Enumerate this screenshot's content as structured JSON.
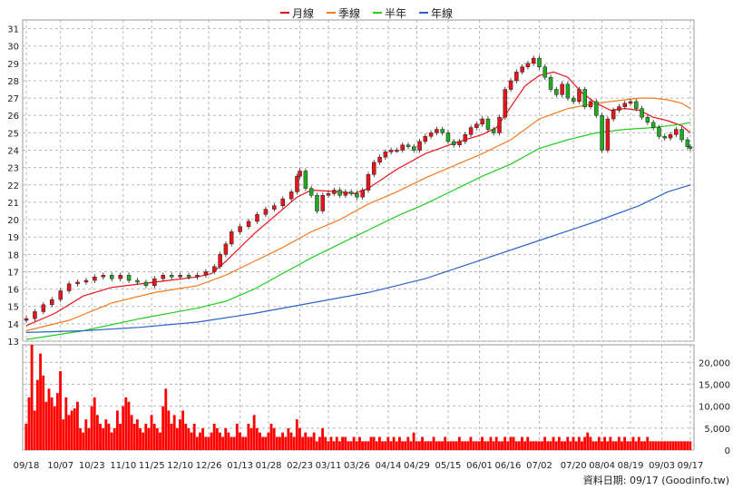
{
  "legend": [
    {
      "label": "月線",
      "color": "#e8141b"
    },
    {
      "label": "季線",
      "color": "#f47a20"
    },
    {
      "label": "半年",
      "color": "#22cc22"
    },
    {
      "label": "年線",
      "color": "#2a64c8"
    }
  ],
  "source_text": "資料日期: 09/17  (Goodinfo.tw)",
  "chart_data": [
    {
      "type": "candlestick",
      "name": "price",
      "y_ticks": [
        13,
        14,
        15,
        16,
        17,
        18,
        19,
        20,
        21,
        22,
        23,
        24,
        25,
        26,
        27,
        28,
        29,
        30,
        31
      ],
      "ylim": [
        13,
        31.5
      ],
      "x_tick_labels": [
        "09/18",
        "10/07",
        "10/23",
        "11/10",
        "11/25",
        "12/10",
        "12/26",
        "01/13",
        "01/28",
        "02/23",
        "03/11",
        "03/26",
        "04/14",
        "04/29",
        "05/15",
        "06/01",
        "06/16",
        "07/02",
        "07/20",
        "08/04",
        "08/19",
        "09/03",
        "09/17"
      ],
      "x_tick_index": [
        0,
        12,
        23,
        34,
        44,
        54,
        64,
        75,
        85,
        96,
        106,
        116,
        127,
        137,
        148,
        159,
        169,
        180,
        192,
        202,
        212,
        223,
        233
      ],
      "grid": true,
      "close_points": [
        [
          0,
          14.3
        ],
        [
          3,
          14.7
        ],
        [
          6,
          15.1
        ],
        [
          9,
          15.4
        ],
        [
          12,
          15.9
        ],
        [
          15,
          16.3
        ],
        [
          18,
          16.4
        ],
        [
          21,
          16.5
        ],
        [
          24,
          16.7
        ],
        [
          27,
          16.8
        ],
        [
          30,
          16.6
        ],
        [
          33,
          16.8
        ],
        [
          36,
          16.5
        ],
        [
          39,
          16.4
        ],
        [
          42,
          16.2
        ],
        [
          45,
          16.6
        ],
        [
          48,
          16.8
        ],
        [
          51,
          16.7
        ],
        [
          54,
          16.8
        ],
        [
          57,
          16.7
        ],
        [
          60,
          16.8
        ],
        [
          63,
          17.0
        ],
        [
          66,
          17.3
        ],
        [
          68,
          18.0
        ],
        [
          70,
          18.6
        ],
        [
          72,
          19.3
        ],
        [
          75,
          19.6
        ],
        [
          78,
          19.9
        ],
        [
          81,
          20.3
        ],
        [
          84,
          20.6
        ],
        [
          87,
          20.8
        ],
        [
          90,
          21.2
        ],
        [
          93,
          21.6
        ],
        [
          95,
          22.5
        ],
        [
          96,
          22.8
        ],
        [
          98,
          21.8
        ],
        [
          100,
          21.4
        ],
        [
          102,
          20.5
        ],
        [
          104,
          21.4
        ],
        [
          106,
          21.5
        ],
        [
          108,
          21.7
        ],
        [
          110,
          21.4
        ],
        [
          112,
          21.6
        ],
        [
          114,
          21.5
        ],
        [
          116,
          21.3
        ],
        [
          118,
          21.7
        ],
        [
          120,
          22.6
        ],
        [
          122,
          23.3
        ],
        [
          124,
          23.6
        ],
        [
          126,
          23.9
        ],
        [
          128,
          24.0
        ],
        [
          130,
          24.0
        ],
        [
          132,
          24.3
        ],
        [
          134,
          24.2
        ],
        [
          136,
          24.0
        ],
        [
          138,
          24.5
        ],
        [
          140,
          24.8
        ],
        [
          142,
          25.0
        ],
        [
          144,
          25.2
        ],
        [
          146,
          25.0
        ],
        [
          148,
          24.5
        ],
        [
          150,
          24.3
        ],
        [
          152,
          24.5
        ],
        [
          154,
          24.9
        ],
        [
          156,
          25.3
        ],
        [
          158,
          25.5
        ],
        [
          160,
          25.8
        ],
        [
          162,
          25.2
        ],
        [
          164,
          25.0
        ],
        [
          166,
          25.9
        ],
        [
          168,
          27.5
        ],
        [
          170,
          28.0
        ],
        [
          172,
          28.5
        ],
        [
          174,
          28.8
        ],
        [
          176,
          29.0
        ],
        [
          178,
          29.3
        ],
        [
          180,
          28.8
        ],
        [
          182,
          28.2
        ],
        [
          184,
          27.5
        ],
        [
          186,
          27.2
        ],
        [
          188,
          27.8
        ],
        [
          190,
          27.0
        ],
        [
          192,
          26.8
        ],
        [
          194,
          27.5
        ],
        [
          196,
          26.5
        ],
        [
          198,
          26.8
        ],
        [
          200,
          26.0
        ],
        [
          202,
          24.0
        ],
        [
          204,
          25.8
        ],
        [
          206,
          26.3
        ],
        [
          208,
          26.5
        ],
        [
          210,
          26.7
        ],
        [
          212,
          26.8
        ],
        [
          214,
          26.4
        ],
        [
          216,
          25.9
        ],
        [
          218,
          25.6
        ],
        [
          220,
          25.3
        ],
        [
          222,
          24.8
        ],
        [
          224,
          24.7
        ],
        [
          226,
          24.9
        ],
        [
          228,
          25.2
        ],
        [
          230,
          24.6
        ],
        [
          232,
          24.2
        ],
        [
          233,
          24.1
        ]
      ],
      "series": [
        {
          "name": "月線",
          "color": "#e8141b",
          "points": [
            [
              0,
              13.9
            ],
            [
              10,
              14.6
            ],
            [
              20,
              15.6
            ],
            [
              30,
              16.1
            ],
            [
              40,
              16.3
            ],
            [
              50,
              16.5
            ],
            [
              60,
              16.7
            ],
            [
              65,
              16.9
            ],
            [
              70,
              17.6
            ],
            [
              80,
              19.2
            ],
            [
              90,
              20.6
            ],
            [
              95,
              21.3
            ],
            [
              100,
              21.7
            ],
            [
              110,
              21.6
            ],
            [
              115,
              21.5
            ],
            [
              120,
              21.8
            ],
            [
              130,
              22.9
            ],
            [
              140,
              23.8
            ],
            [
              150,
              24.4
            ],
            [
              160,
              24.9
            ],
            [
              165,
              25.3
            ],
            [
              170,
              26.5
            ],
            [
              175,
              27.7
            ],
            [
              180,
              28.3
            ],
            [
              185,
              28.5
            ],
            [
              190,
              28.2
            ],
            [
              195,
              27.3
            ],
            [
              200,
              26.7
            ],
            [
              205,
              26.3
            ],
            [
              210,
              26.4
            ],
            [
              215,
              26.3
            ],
            [
              220,
              25.9
            ],
            [
              225,
              25.7
            ],
            [
              230,
              25.4
            ],
            [
              233,
              25.0
            ]
          ]
        },
        {
          "name": "季線",
          "color": "#f47a20",
          "points": [
            [
              0,
              13.6
            ],
            [
              15,
              14.2
            ],
            [
              30,
              15.2
            ],
            [
              45,
              15.8
            ],
            [
              60,
              16.2
            ],
            [
              70,
              16.8
            ],
            [
              80,
              17.6
            ],
            [
              90,
              18.4
            ],
            [
              100,
              19.3
            ],
            [
              110,
              20.0
            ],
            [
              120,
              20.9
            ],
            [
              130,
              21.6
            ],
            [
              140,
              22.4
            ],
            [
              150,
              23.1
            ],
            [
              160,
              23.8
            ],
            [
              170,
              24.6
            ],
            [
              180,
              25.8
            ],
            [
              190,
              26.4
            ],
            [
              200,
              26.7
            ],
            [
              210,
              26.9
            ],
            [
              215,
              27.0
            ],
            [
              220,
              27.0
            ],
            [
              225,
              26.9
            ],
            [
              230,
              26.7
            ],
            [
              233,
              26.4
            ]
          ]
        },
        {
          "name": "半年",
          "color": "#22cc22",
          "points": [
            [
              0,
              13.1
            ],
            [
              20,
              13.6
            ],
            [
              40,
              14.3
            ],
            [
              60,
              14.9
            ],
            [
              70,
              15.3
            ],
            [
              80,
              16.0
            ],
            [
              90,
              16.9
            ],
            [
              100,
              17.8
            ],
            [
              110,
              18.6
            ],
            [
              120,
              19.4
            ],
            [
              130,
              20.2
            ],
            [
              140,
              20.9
            ],
            [
              150,
              21.7
            ],
            [
              160,
              22.5
            ],
            [
              170,
              23.2
            ],
            [
              180,
              24.1
            ],
            [
              190,
              24.6
            ],
            [
              200,
              25.0
            ],
            [
              210,
              25.2
            ],
            [
              220,
              25.3
            ],
            [
              230,
              25.5
            ],
            [
              233,
              25.6
            ]
          ]
        },
        {
          "name": "年線",
          "color": "#2a64c8",
          "points": [
            [
              0,
              13.5
            ],
            [
              20,
              13.6
            ],
            [
              40,
              13.8
            ],
            [
              60,
              14.1
            ],
            [
              80,
              14.6
            ],
            [
              100,
              15.2
            ],
            [
              120,
              15.8
            ],
            [
              140,
              16.6
            ],
            [
              160,
              17.7
            ],
            [
              180,
              18.8
            ],
            [
              200,
              19.9
            ],
            [
              215,
              20.8
            ],
            [
              225,
              21.6
            ],
            [
              233,
              22.0
            ]
          ]
        }
      ]
    },
    {
      "type": "bar",
      "name": "volume",
      "color": "#ff0000",
      "y_ticks": [
        0,
        5000,
        10000,
        15000,
        20000
      ],
      "y_tick_labels": [
        "0",
        "5,000",
        "10,000",
        "15,000",
        "20,000"
      ],
      "ylim": [
        0,
        24000
      ],
      "values": [
        6000,
        12000,
        24000,
        9000,
        16000,
        22000,
        17000,
        11000,
        14000,
        12000,
        10000,
        13000,
        18000,
        7000,
        12000,
        8000,
        9000,
        9500,
        11000,
        5000,
        4000,
        7000,
        5000,
        10000,
        12000,
        8000,
        6000,
        5000,
        7000,
        6000,
        4000,
        5000,
        9000,
        6000,
        10000,
        12000,
        11000,
        8000,
        6000,
        7000,
        5000,
        4000,
        6000,
        5000,
        8000,
        6000,
        5000,
        4000,
        10000,
        14000,
        9000,
        6000,
        8000,
        5000,
        7000,
        9000,
        6000,
        5000,
        4000,
        6000,
        3000,
        4000,
        5000,
        3000,
        3000,
        4000,
        6000,
        5000,
        4000,
        3000,
        5000,
        4000,
        3000,
        3000,
        6000,
        4000,
        3000,
        3000,
        6000,
        5000,
        8000,
        5000,
        4000,
        3000,
        3000,
        4000,
        6000,
        5000,
        3000,
        3000,
        4000,
        3000,
        5000,
        4000,
        3000,
        7000,
        5000,
        3000,
        4000,
        3000,
        3000,
        4000,
        2000,
        3000,
        5000,
        3000,
        2000,
        3000,
        2000,
        3000,
        2000,
        3000,
        3000,
        2000,
        2000,
        3000,
        2000,
        3000,
        2000,
        2000,
        2000,
        3000,
        3000,
        2000,
        3000,
        2000,
        2000,
        3000,
        2000,
        3000,
        2000,
        3000,
        2000,
        2000,
        3000,
        2000,
        4000,
        2000,
        2000,
        3000,
        2000,
        2000,
        2000,
        3000,
        2000,
        2000,
        2000,
        3000,
        2000,
        2000,
        2000,
        2000,
        3000,
        2000,
        2000,
        2000,
        3000,
        2000,
        2000,
        2000,
        3000,
        2000,
        2000,
        3000,
        2000,
        3000,
        2000,
        2000,
        3000,
        2000,
        3000,
        3000,
        2000,
        2000,
        3000,
        2000,
        3000,
        2000,
        2000,
        2000,
        2000,
        2000,
        3000,
        2000,
        2000,
        3000,
        2000,
        3000,
        2000,
        2000,
        3000,
        2000,
        3000,
        2000,
        3000,
        2000,
        3000,
        4000,
        3000,
        2000,
        2000,
        3000,
        2000,
        3000,
        2000,
        3000,
        2000,
        2000,
        3000,
        2000,
        3000,
        2000,
        2000,
        3000,
        2000,
        3000,
        2000,
        2000,
        3000,
        2000,
        2000,
        2000,
        2000,
        2000,
        2000,
        2000,
        2000,
        2000,
        2000,
        2000,
        2000,
        2000,
        2000,
        2000
      ]
    }
  ]
}
